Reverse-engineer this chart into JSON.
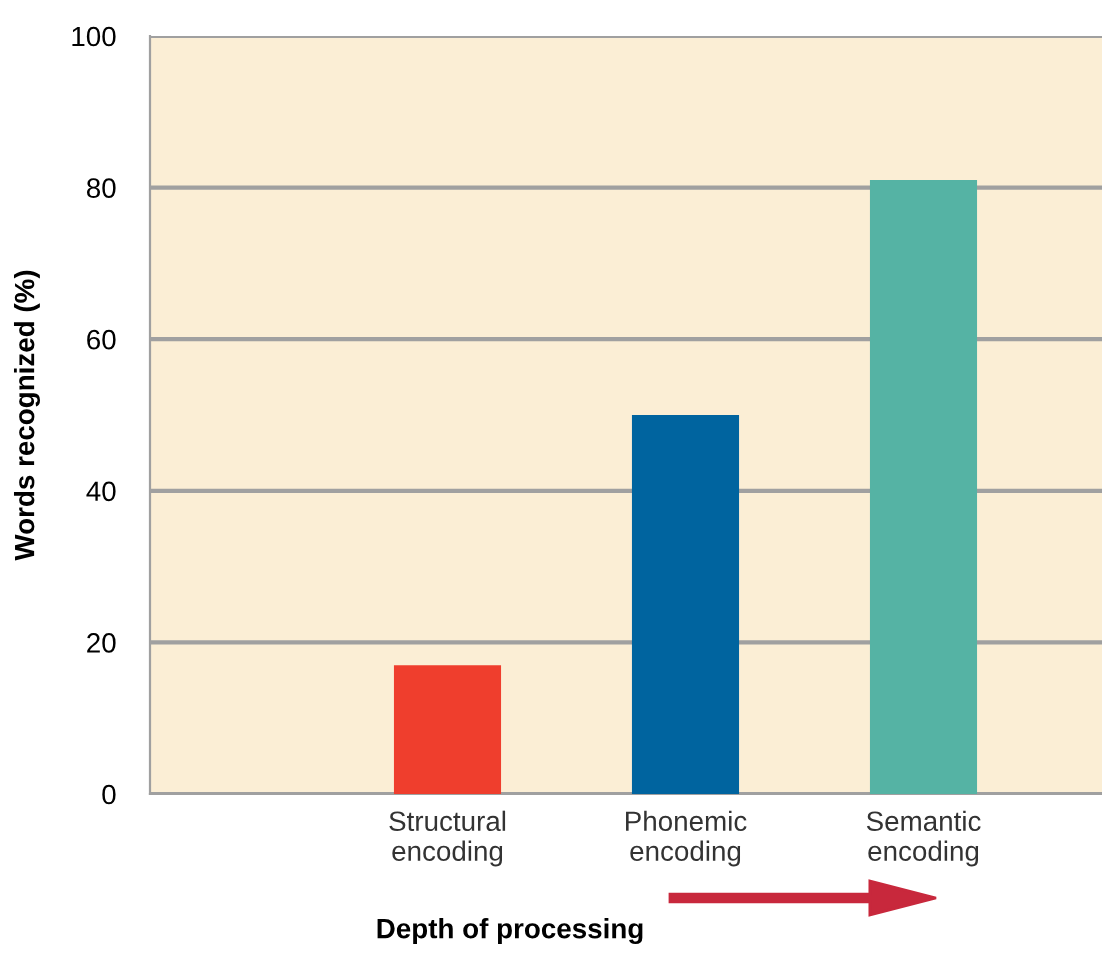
{
  "chart_data": {
    "type": "bar",
    "xlabel": "Depth of processing",
    "ylabel": "Words recognized (%)",
    "categories": [
      "Structural\nencoding",
      "Phonemic\nencoding",
      "Semantic\nencoding"
    ],
    "values": [
      17,
      50,
      81
    ],
    "colors": [
      "#ef3e2d",
      "#00649f",
      "#55b3a4"
    ],
    "ylim": [
      0,
      100
    ],
    "yticks": [
      0,
      20,
      40,
      60,
      80,
      100
    ],
    "grid": "y"
  }
}
